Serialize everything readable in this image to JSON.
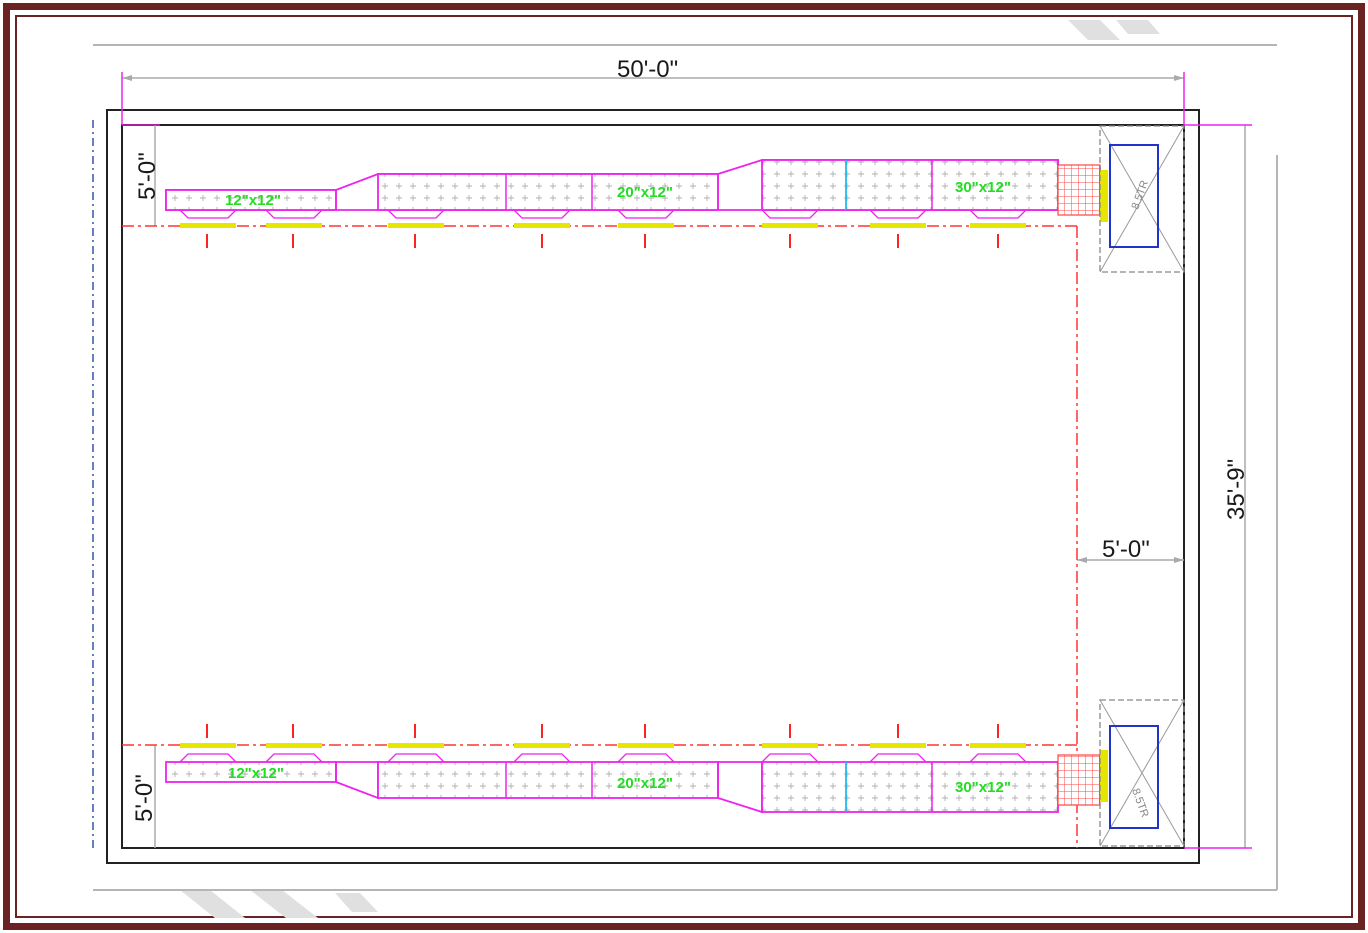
{
  "colors": {
    "frame": "#6b2222",
    "duct": "#ee22ee",
    "duct_label": "#22dd22",
    "diffuser": "#e6e600",
    "supply_arrow": "#ff2222",
    "ahu_box": "#2233cc",
    "filter": "#ff4444",
    "dimension": "#333333",
    "wall": "#222222"
  },
  "dimensions": {
    "width": "50'-0\"",
    "height": "35'-9\"",
    "top_offset": "5'-0\"",
    "bottom_offset": "5'-0\"",
    "right_offset": "5'-0\""
  },
  "ducts": {
    "top": [
      "12\"x12\"",
      "20\"x12\"",
      "30\"x12\""
    ],
    "bottom": [
      "12\"x12\"",
      "20\"x12\"",
      "30\"x12\""
    ]
  },
  "units": {
    "top": "8.5TR",
    "bottom": "8.5TR"
  }
}
